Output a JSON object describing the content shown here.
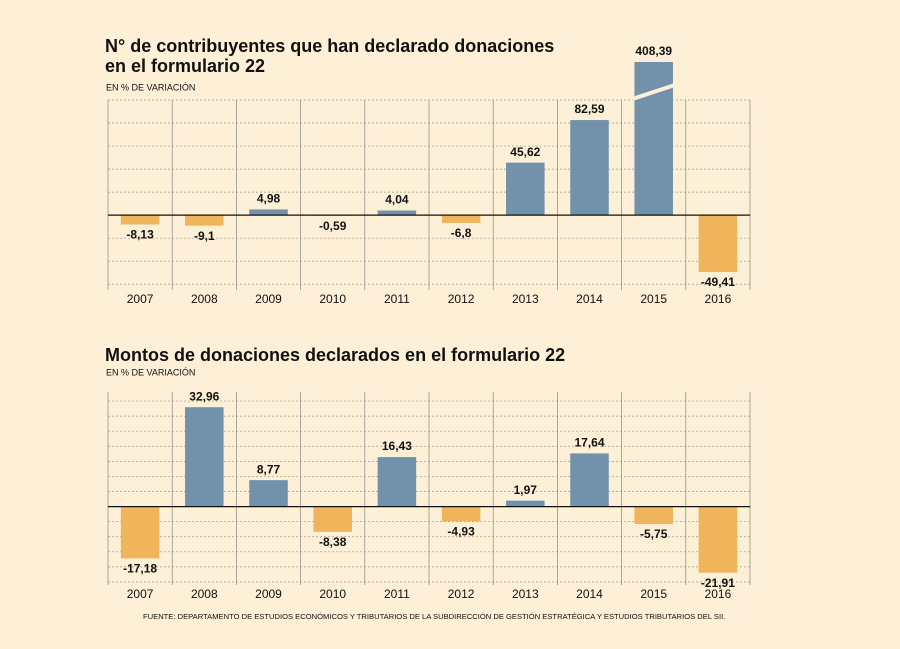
{
  "chart_data": [
    {
      "type": "bar",
      "title": [
        "N° de contribuyentes que han declarado donaciones",
        "en el formulario 22"
      ],
      "subtitle": "EN % DE VARIACIÓN",
      "categories": [
        "2007",
        "2008",
        "2009",
        "2010",
        "2011",
        "2012",
        "2013",
        "2014",
        "2015",
        "2016"
      ],
      "values": [
        -8.13,
        -9.1,
        4.98,
        -0.59,
        4.04,
        -6.8,
        45.62,
        82.59,
        408.39,
        -49.41
      ],
      "value_labels": [
        "-8,13",
        "-9,1",
        "4,98",
        "-0,59",
        "4,04",
        "-6,8",
        "45,62",
        "82,59",
        "408,39",
        "-49,41"
      ],
      "positive_color": "#7291ab",
      "negative_color": "#f0b55a",
      "ylim": [
        -65,
        100
      ],
      "yticks": [
        -60,
        -40,
        -20,
        0,
        20,
        40,
        60,
        80,
        100
      ],
      "grid": true,
      "axis_break": true
    },
    {
      "type": "bar",
      "title": [
        "Montos de donaciones declarados en el formulario 22"
      ],
      "subtitle": "EN % DE VARIACIÓN",
      "categories": [
        "2007",
        "2008",
        "2009",
        "2010",
        "2011",
        "2012",
        "2013",
        "2014",
        "2015",
        "2016"
      ],
      "values": [
        -17.18,
        32.96,
        8.77,
        -8.38,
        16.43,
        -4.93,
        1.97,
        17.64,
        -5.75,
        -21.91
      ],
      "value_labels": [
        "-17,18",
        "32,96",
        "8,77",
        "-8,38",
        "16,43",
        "-4,93",
        "1,97",
        "17,64",
        "-5,75",
        "-21,91"
      ],
      "positive_color": "#7291ab",
      "negative_color": "#f0b55a",
      "ylim": [
        -26,
        38
      ],
      "yticks": [
        -25,
        -20,
        -15,
        -10,
        -5,
        0,
        5,
        10,
        15,
        20,
        25,
        30,
        35
      ],
      "grid": true
    }
  ],
  "source": "FUENTE: DEPARTAMENTO DE ESTUDIOS ECONÓMICOS Y TRIBUTARIOS DE LA SUBDIRECCIÓN DE GESTIÓN ESTRATÉGICA Y ESTUDIOS TRIBUTARIOS DEL SII."
}
